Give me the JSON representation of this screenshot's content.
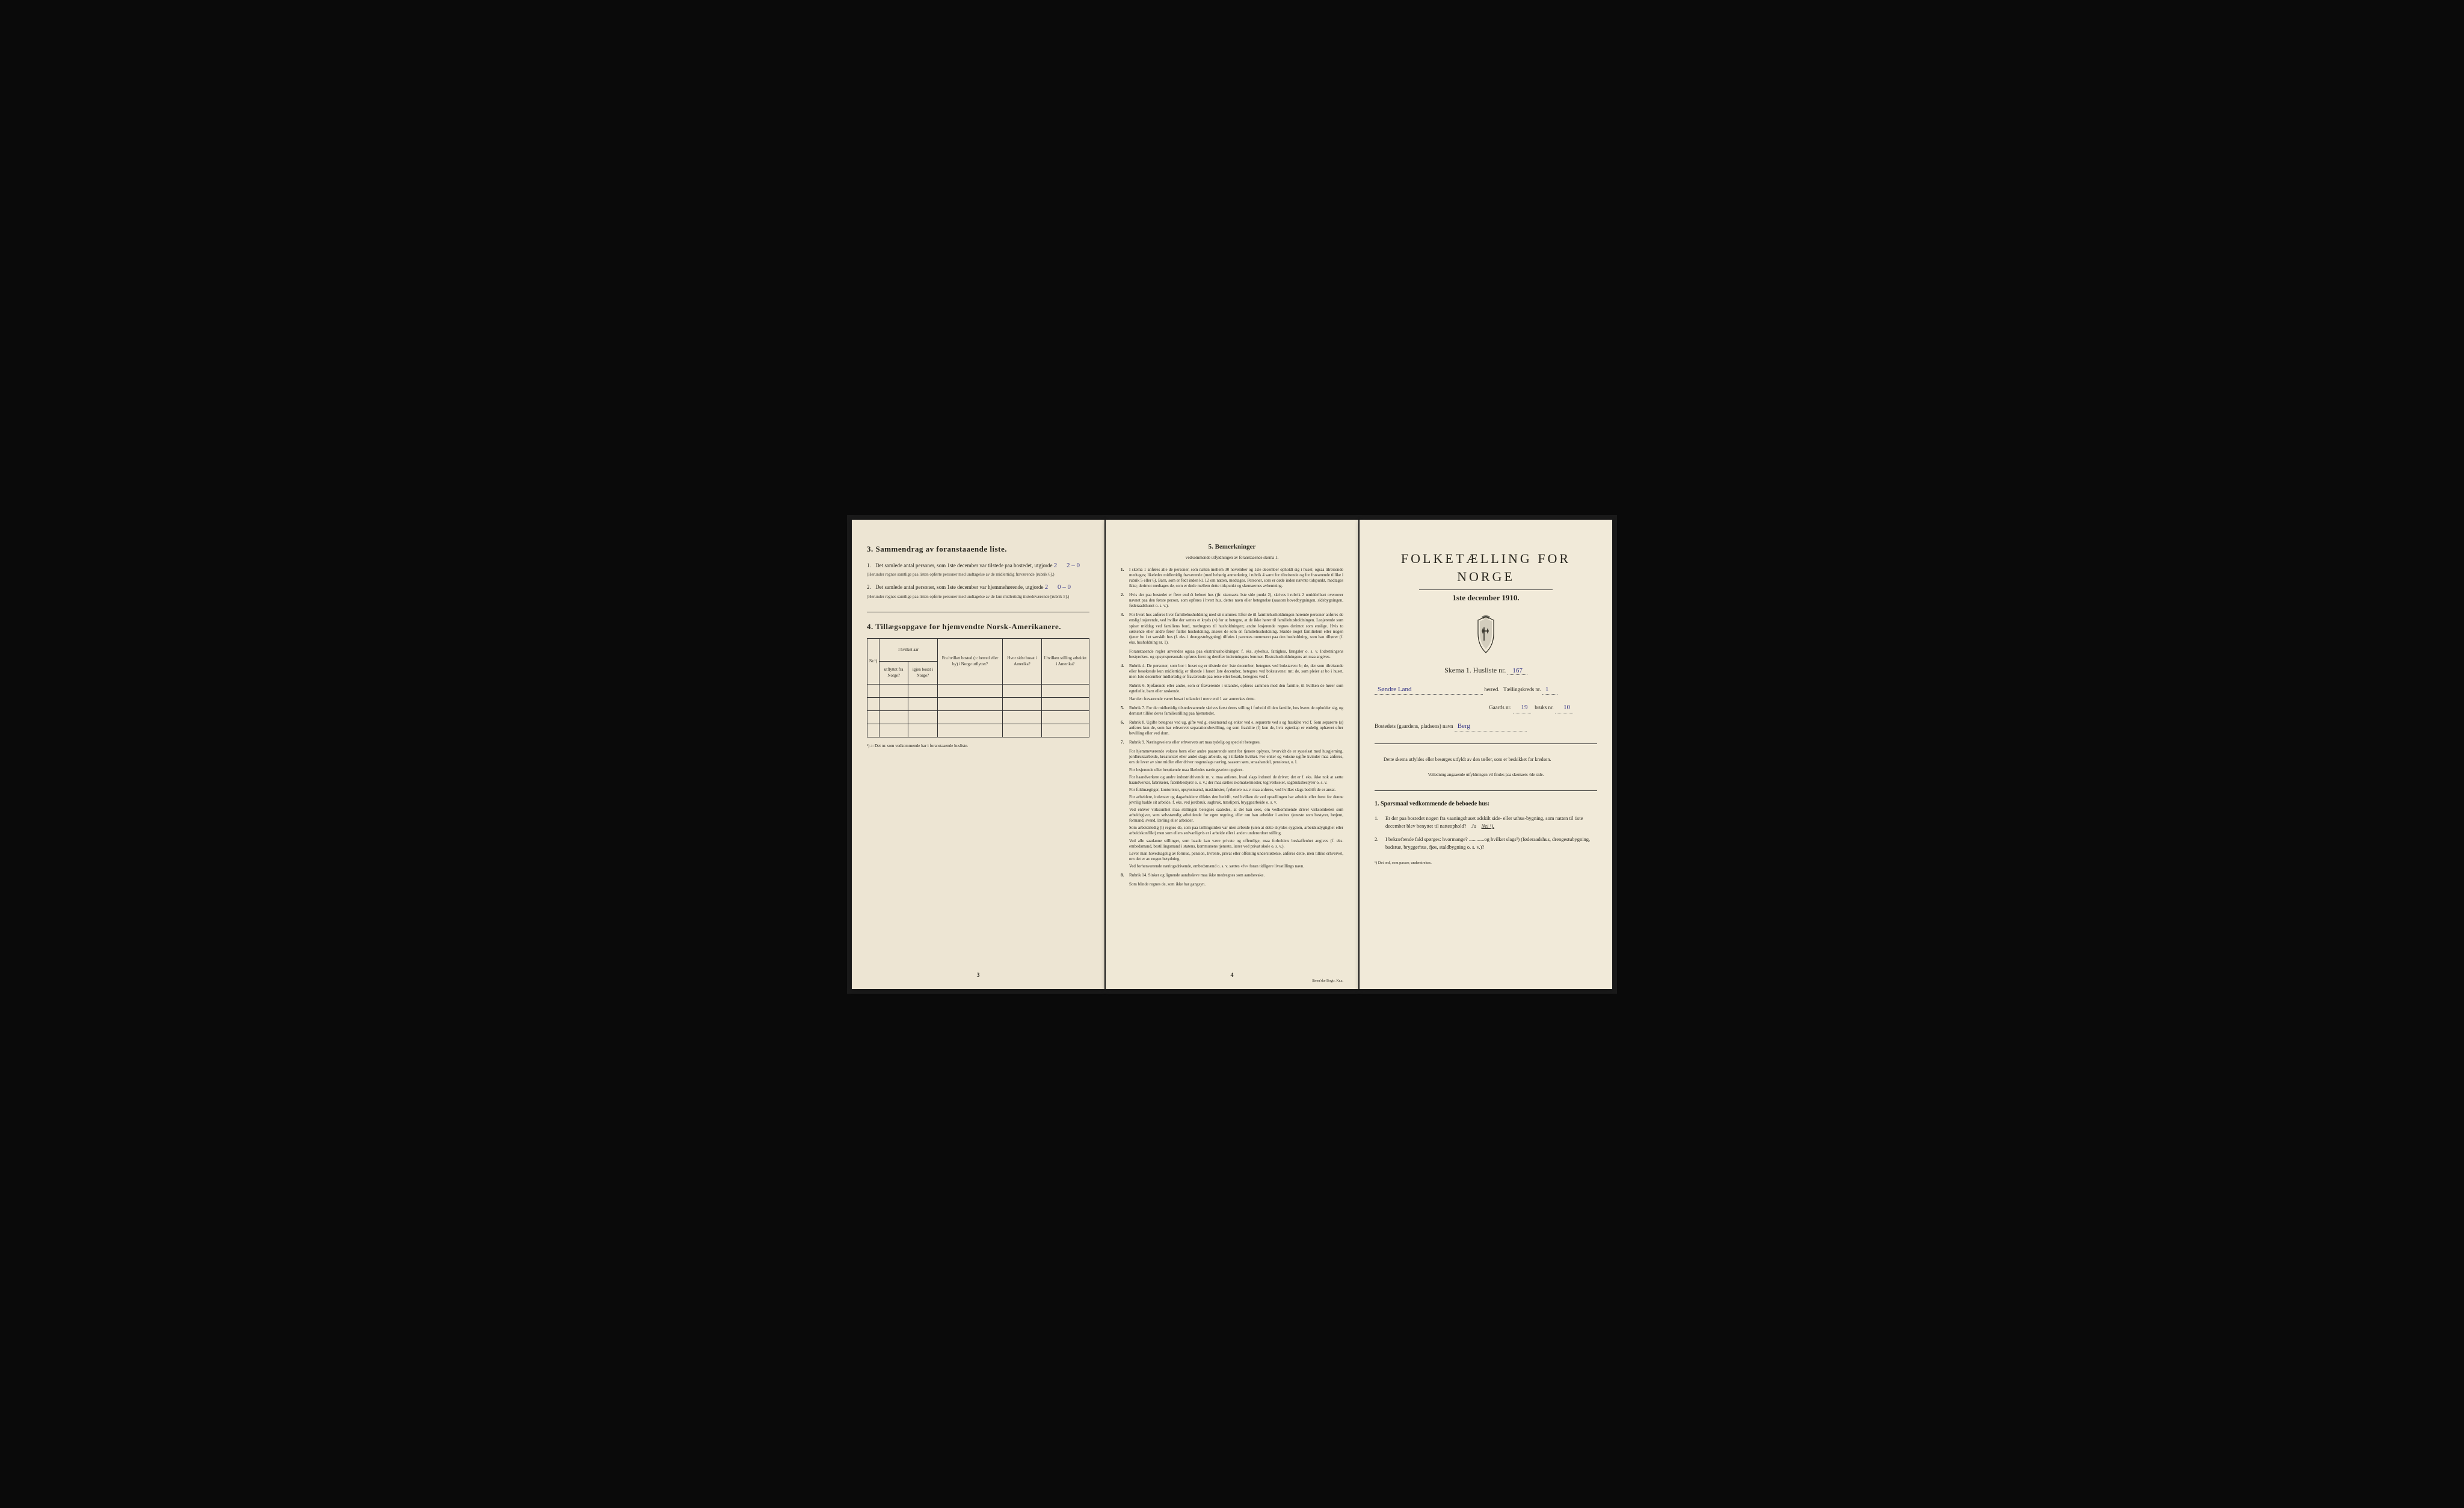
{
  "colors": {
    "background": "#0a0a0a",
    "paper_left": "#ede5d3",
    "paper_middle": "#efe8d6",
    "paper_right": "#f1ead9",
    "text": "#2a2820",
    "handwriting": "#3a3a88",
    "border": "#333333"
  },
  "page3": {
    "heading": "3.  Sammendrag av foranstaaende liste.",
    "item1_num": "1.",
    "item1_text": "Det samlede antal personer, som 1ste december var tilstede paa bostedet, utgjorde",
    "item1_hw1": "2",
    "item1_hw2": "2 – 0",
    "item1_note": "(Herunder regnes samtlige paa listen opførte personer med undtagelse av de midlertidig fraværende [rubrik 6].)",
    "item2_num": "2.",
    "item2_text": "Det samlede antal personer, som 1ste december var hjemmehørende, utgjorde",
    "item2_hw1": "2",
    "item2_hw2": "0 – 0",
    "item2_note": "(Herunder regnes samtlige paa listen opførte personer med undtagelse av de kun midlertidig tilstedeværende [rubrik 5].)",
    "heading4": "4.  Tillægsopgave for hjemvendte Norsk-Amerikanere.",
    "table": {
      "col1": "Nr.¹)",
      "col2a": "I hvilket aar",
      "col2b": "utflyttet fra Norge?",
      "col2c": "igjen bosat i Norge?",
      "col3": "Fra hvilket bosted (ɔ: herred eller by) i Norge utflyttet?",
      "col4": "Hvor sidst bosat i Amerika?",
      "col5": "I hvilken stilling arbeidet i Amerika?",
      "rows": 4
    },
    "footnote": "¹) ɔ: Det nr. som vedkommende har i foranstaaende husliste.",
    "page_number": "3"
  },
  "page4": {
    "heading": "5.  Bemerkninger",
    "subtitle": "vedkommende utfyldningen av foranstaaende skema 1.",
    "items": [
      {
        "n": "1.",
        "txt": "I skema 1 anføres alle de personer, som natten mellem 30 november og 1ste december opholdt sig i huset; ogsaa tilreisende medtages; likeledes midlertidig fraværende (med behørig anmerkning i rubrik 4 samt for tilreisende og for fraværende tillike i rubrik 5 eller 6). Barn, som er født inden kl. 12 om natten, medtages. Personer, som er døde inden nævnte tidspunkt, medtages ikke; derimot medtages de, som er døde mellem dette tidspunkt og skemaernes avhentning."
      },
      {
        "n": "2.",
        "txt": "Hvis der paa bostedet er flere end ét beboet hus (jfr. skemaets 1ste side punkt 2), skrives i rubrik 2 umiddelbart ovenover navnet paa den første person, som opføres i hvert hus, dettes navn eller betegnelse (saasom hovedbygningen, sidebygningen, føderaadshuset o. s. v.)."
      },
      {
        "n": "3.",
        "txt": "For hvert hus anføres hver familiehusholdning med sit nummer. Efter de til familiehusholdningen hørende personer anføres de enslig losjerende, ved hvilke der sættes et kryds (×) for at betegne, at de ikke hører til familiehusholdningen. Losjerende som spiser middag ved familiens bord, medregnes til husholdningen; andre losjerende regnes derimot som enslige. Hvis to søskende eller andre fører fælles husholdning, ansees de som en familiehusholdning. Skulde noget familielem eller nogen tjener bo i et særskilt hus (f. eks. i drengestubygning) tilføies i parentes nummeret paa den husholdning, som han tilhører (f. eks. husholdning nr. 1)."
      },
      {
        "n": "",
        "txt": "Foranstaaende regler anvendes ogsaa paa ekstrahusholdninger, f. eks. sykehus, fattighus, fængsler o. s. v. Indretningens bestyrelses- og opsynspersonale opføres først og derefter indretningens lemmer. Ekstrahusholdningens art maa angives."
      },
      {
        "n": "4.",
        "txt": "Rubrik 4. De personer, som bor i huset og er tilstede der 1ste december, betegnes ved bokstaven: b; de, der som tilreisende eller besøkende kun midlertidig er tilstede i huset 1ste december, betegnes ved bokstavene: mt; de, som pleier at bo i huset, men 1ste december midlertidig er fraværende paa reise eller besøk, betegnes ved f."
      },
      {
        "n": "",
        "txt": "Rubrik 6. Sjøfarende eller andre, som er fraværende i utlandet, opføres sammen med den familie, til hvilken de hører som egtefælle, barn eller søskende."
      },
      {
        "n": "",
        "txt": "Har den fraværende været bosat i utlandet i mere end 1 aar anmerkes dette."
      },
      {
        "n": "5.",
        "txt": "Rubrik 7. For de midlertidig tilstedeværende skrives først deres stilling i forhold til den familie, hos hvem de opholder sig, og dernæst tillike deres familiestilling paa hjemstedet."
      },
      {
        "n": "6.",
        "txt": "Rubrik 8. Ugifte betegnes ved ug, gifte ved g, enkemænd og enker ved e, separerte ved s og fraskilte ved f. Som separerte (s) anføres kun de, som har erhvervet separationsbevilling, og som fraskilte (f) kun de, hvis egteskap er endelig ophævet efter bevilling eller ved dom."
      },
      {
        "n": "7.",
        "txt": "Rubrik 9. Næringsveiens eller erhvervets art maa tydelig og specielt betegnes."
      },
      {
        "n": "",
        "txt": "For hjemmeværende voksne børn eller andre paarørende samt for tjenere oplyses, hvorvidt de er sysselsat med husgjerning, jordbruksarbeide, kreaturstel eller andet slags arbeide, og i tilfælde hvilket. For enker og voksne ugifte kvinder maa anføres, om de lever av sine midler eller driver nogenslags næring, saasom søm, smaahandel, pensionat, o. l."
      },
      {
        "n": "",
        "txt": "For losjerende eller besøkende maa likeledes næringsveien opgives."
      },
      {
        "n": "",
        "txt": "For haandverkere og andre industridrivende m. v. maa anføres, hvad slags industri de driver; det er f. eks. ikke nok at sætte haandverker, fabrikeier, fabrikbestyrer o. s. v.; der maa sættes skomakermester, teglverkseier, sagbruksbestyrer o. s. v."
      },
      {
        "n": "",
        "txt": "For fuldmægtiger, kontorister, opsynsmænd, maskinister, fyrbøtere o.s.v. maa anføres, ved hvilket slags bedrift de er ansat."
      },
      {
        "n": "",
        "txt": "For arbeidere, inderster og dagarbeidere tilføies den bedrift, ved hvilken de ved optællingen har arbeide eller forut for denne jevnlig hadde sit arbeide, f. eks. ved jordbruk, sagbruk, træsliperi, bryggearbeide o. s. v."
      },
      {
        "n": "",
        "txt": "Ved enhver virksomhet maa stillingen betegnes saaledes, at det kan sees, om vedkommende driver virksomheten som arbeidsgiver, som selvstændig arbeidende for egen regning, eller om han arbeider i andres tjeneste som bestyrer, betjent, formand, svend, lærling eller arbeider."
      },
      {
        "n": "",
        "txt": "Som arbeidsledig (l) regnes de, som paa tællingstiden var uten arbeide (uten at dette skyldes sygdom, arbeidsudygtighet eller arbeidskonflikt) men som ellers sedvanligvis er i arbeide eller i anden underordnet stilling."
      },
      {
        "n": "",
        "txt": "Ved alle saadanne stillinger, som baade kan være private og offentlige, maa forholdets beskaffenhet angives (f. eks. embedsmand, bestillingsmand i statens, kommunens tjeneste, lærer ved privat skole o. s. v.)."
      },
      {
        "n": "",
        "txt": "Lever man hovedsagelig av formue, pension, livrente, privat eller offentlig understøttelse, anføres dette, men tillike erhvervet, om det er av nogen betydning."
      },
      {
        "n": "",
        "txt": "Ved forhenværende næringsdrivende, embedsmænd o. s. v. sættes «fv» foran tidligere livsstillings navn."
      },
      {
        "n": "8.",
        "txt": "Rubrik 14. Sinker og lignende aandssløve maa ikke medregnes som aandssvake."
      },
      {
        "n": "",
        "txt": "Som blinde regnes de, som ikke har gangsyn."
      }
    ],
    "page_number": "4",
    "printer": "Steen'ske Bogtr. Kr.a."
  },
  "page1": {
    "main_title": "FOLKETÆLLING FOR NORGE",
    "date": "1ste december 1910.",
    "crest_label": "Norwegian coat of arms",
    "skema_label": "Skema 1.  Husliste nr.",
    "skema_hw": "167",
    "herred_hw": "Søndre Land",
    "herred_label": "herred.",
    "kreds_label": "Tællingskreds nr.",
    "kreds_hw": "1",
    "gaard_label": "Gaards nr.",
    "gaard_hw": "19",
    "bruk_label": "bruks nr.",
    "bruk_hw": "10",
    "bosted_label": "Bostedets (gaardens, pladsens) navn",
    "bosted_hw": "Berg",
    "instructions": "Dette skema utfyldes eller besørges utfyldt av den tæller, som er beskikket for kredsen.",
    "instructions_sub": "Veiledning angaaende utfyldningen vil findes paa skemaets 4de side.",
    "section1_head": "1. Spørsmaal vedkommende de beboede hus:",
    "q1_num": "1.",
    "q1_text": "Er der paa bostedet nogen fra vaaningshuset adskilt side- eller uthus-bygning, som natten til 1ste december blev benyttet til natteophold?",
    "q1_ja": "Ja",
    "q1_nei": "Nei ¹).",
    "q2_num": "2.",
    "q2_text": "I bekræftende fald spørges: hvormange? ............og hvilket slags¹) (føderaadshus, drengestubygning, badstue, bryggerhus, fjøs, staldbygning o. s. v.)?",
    "footnote": "¹) Det ord, som passer, understrekes."
  }
}
